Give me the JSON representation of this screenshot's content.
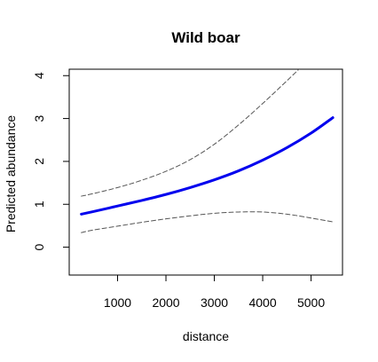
{
  "chart_data": {
    "type": "line",
    "title": "Wild boar",
    "xlabel": "distance",
    "ylabel": "Predicted abundance",
    "xlim": [
      0,
      5650
    ],
    "ylim": [
      -0.65,
      4.15
    ],
    "xticks": [
      1000,
      2000,
      3000,
      4000,
      5000
    ],
    "yticks": [
      0,
      1,
      2,
      3,
      4
    ],
    "grid": false,
    "legend": "none",
    "colors": {
      "fit": "#0000EE",
      "ci": "#555555",
      "axis": "#000000"
    },
    "series": [
      {
        "name": "fit",
        "style": "solid",
        "x": [
          250,
          500,
          1000,
          1500,
          2000,
          2500,
          3000,
          3500,
          4000,
          4500,
          5000,
          5450
        ],
        "y": [
          0.77,
          0.83,
          0.96,
          1.09,
          1.23,
          1.39,
          1.57,
          1.78,
          2.03,
          2.32,
          2.66,
          3.02
        ]
      },
      {
        "name": "upper-ci",
        "style": "dashed",
        "x": [
          250,
          500,
          1000,
          1500,
          2000,
          2500,
          3000,
          3500,
          4000,
          4500,
          4750
        ],
        "y": [
          1.19,
          1.25,
          1.39,
          1.56,
          1.77,
          2.04,
          2.4,
          2.85,
          3.35,
          3.88,
          4.15
        ]
      },
      {
        "name": "lower-ci",
        "style": "dashed",
        "x": [
          250,
          500,
          1000,
          1500,
          2000,
          2500,
          3000,
          3500,
          4000,
          4500,
          5000,
          5450
        ],
        "y": [
          0.34,
          0.4,
          0.49,
          0.58,
          0.66,
          0.73,
          0.79,
          0.82,
          0.82,
          0.77,
          0.68,
          0.59
        ]
      }
    ]
  }
}
